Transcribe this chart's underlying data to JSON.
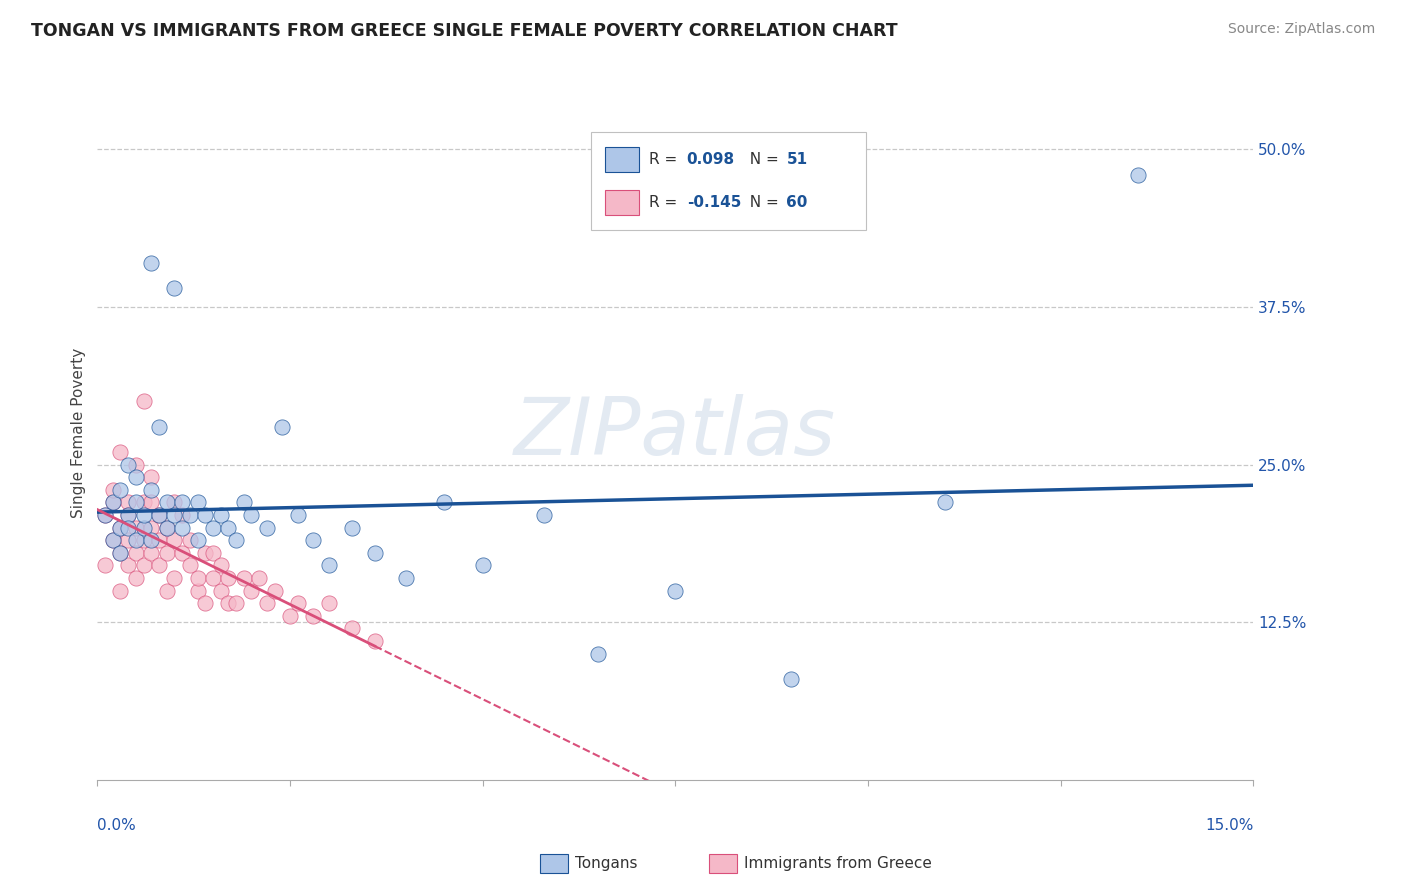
{
  "title": "TONGAN VS IMMIGRANTS FROM GREECE SINGLE FEMALE POVERTY CORRELATION CHART",
  "source": "Source: ZipAtlas.com",
  "ylabel": "Single Female Poverty",
  "ylim": [
    0.0,
    0.55
  ],
  "xlim": [
    0.0,
    0.15
  ],
  "yticks": [
    0.125,
    0.25,
    0.375,
    0.5
  ],
  "ytick_labels": [
    "12.5%",
    "25.0%",
    "37.5%",
    "50.0%"
  ],
  "r_tongan": "0.098",
  "n_tongan": "51",
  "r_greece": "-0.145",
  "n_greece": "60",
  "color_tongan": "#aec6e8",
  "color_greece": "#f5b8c8",
  "line_color_tongan": "#1a5296",
  "line_color_greece": "#d94f7a",
  "tongan_scatter_x": [
    0.001,
    0.002,
    0.002,
    0.003,
    0.003,
    0.003,
    0.004,
    0.004,
    0.004,
    0.005,
    0.005,
    0.005,
    0.006,
    0.006,
    0.007,
    0.007,
    0.007,
    0.008,
    0.008,
    0.009,
    0.009,
    0.01,
    0.01,
    0.011,
    0.011,
    0.012,
    0.013,
    0.013,
    0.014,
    0.015,
    0.016,
    0.017,
    0.018,
    0.019,
    0.02,
    0.022,
    0.024,
    0.026,
    0.028,
    0.03,
    0.033,
    0.036,
    0.04,
    0.045,
    0.05,
    0.058,
    0.065,
    0.075,
    0.09,
    0.11,
    0.135
  ],
  "tongan_scatter_y": [
    0.21,
    0.19,
    0.22,
    0.2,
    0.23,
    0.18,
    0.21,
    0.25,
    0.2,
    0.22,
    0.19,
    0.24,
    0.2,
    0.21,
    0.41,
    0.23,
    0.19,
    0.28,
    0.21,
    0.22,
    0.2,
    0.21,
    0.39,
    0.2,
    0.22,
    0.21,
    0.22,
    0.19,
    0.21,
    0.2,
    0.21,
    0.2,
    0.19,
    0.22,
    0.21,
    0.2,
    0.28,
    0.21,
    0.19,
    0.17,
    0.2,
    0.18,
    0.16,
    0.22,
    0.17,
    0.21,
    0.1,
    0.15,
    0.08,
    0.22,
    0.48
  ],
  "greece_scatter_x": [
    0.001,
    0.001,
    0.002,
    0.002,
    0.002,
    0.003,
    0.003,
    0.003,
    0.003,
    0.004,
    0.004,
    0.004,
    0.004,
    0.005,
    0.005,
    0.005,
    0.005,
    0.006,
    0.006,
    0.006,
    0.006,
    0.007,
    0.007,
    0.007,
    0.007,
    0.008,
    0.008,
    0.008,
    0.009,
    0.009,
    0.009,
    0.01,
    0.01,
    0.01,
    0.011,
    0.011,
    0.012,
    0.012,
    0.013,
    0.013,
    0.014,
    0.014,
    0.015,
    0.015,
    0.016,
    0.016,
    0.017,
    0.017,
    0.018,
    0.019,
    0.02,
    0.021,
    0.022,
    0.023,
    0.025,
    0.026,
    0.028,
    0.03,
    0.033,
    0.036
  ],
  "greece_scatter_y": [
    0.21,
    0.17,
    0.22,
    0.19,
    0.23,
    0.2,
    0.18,
    0.26,
    0.15,
    0.22,
    0.19,
    0.17,
    0.21,
    0.2,
    0.18,
    0.25,
    0.16,
    0.22,
    0.19,
    0.3,
    0.17,
    0.22,
    0.2,
    0.18,
    0.24,
    0.21,
    0.17,
    0.19,
    0.2,
    0.15,
    0.18,
    0.22,
    0.19,
    0.16,
    0.18,
    0.21,
    0.17,
    0.19,
    0.15,
    0.16,
    0.18,
    0.14,
    0.16,
    0.18,
    0.15,
    0.17,
    0.14,
    0.16,
    0.14,
    0.16,
    0.15,
    0.16,
    0.14,
    0.15,
    0.13,
    0.14,
    0.13,
    0.14,
    0.12,
    0.11
  ]
}
